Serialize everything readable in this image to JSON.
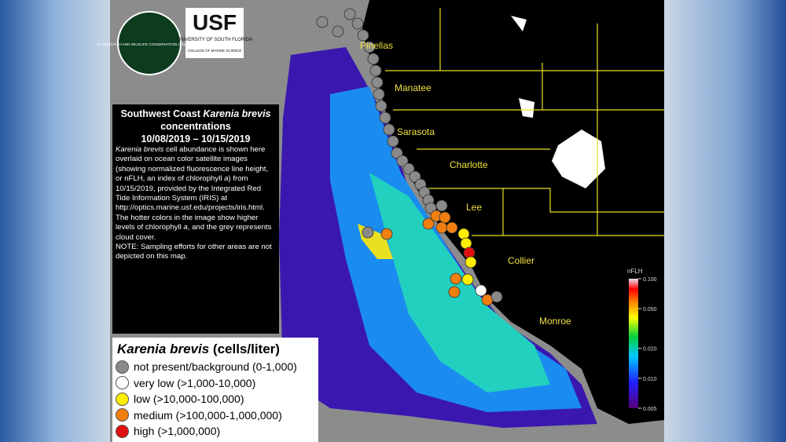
{
  "logos": {
    "fwc": "FLORIDA FISH AND WILDLIFE CONSERVATION COMMISSION",
    "usf": "USF",
    "usf_name": "UNIVERSITY OF SOUTH FLORIDA",
    "usf_college": "COLLEGE OF MARINE SCIENCE"
  },
  "info": {
    "title": [
      {
        "text": "Southwest Coast "
      },
      {
        "text": "Karenia brevis",
        "italic": true
      },
      {
        "text": " concentrations"
      }
    ],
    "date": "10/08/2019 – 10/15/2019",
    "description": [
      {
        "text": "Karenia brevis",
        "italic": true
      },
      {
        "text": " cell abundance is shown here overlaid on ocean color satellite images (showing normalized fluorescence line height, or nFLH, an index of chlorophyll "
      },
      {
        "text": "a",
        "italic": true
      },
      {
        "text": ") from 10/15/2019, provided by the Integrated Red Tide Information System (IRIS) at http://optics.marine.usf.edu/projects/iris.html. The hotter colors in the image show higher levels of chlorophyll "
      },
      {
        "text": "a",
        "italic": true
      },
      {
        "text": ", and the grey represents cloud cover."
      }
    ],
    "note": "NOTE: Sampling efforts for other areas are not depicted on this map."
  },
  "legend": {
    "title": [
      {
        "text": "Karenia brevis",
        "italic": true
      },
      {
        "text": " (cells/liter)"
      }
    ],
    "items": [
      {
        "label": "not present/background (0-1,000)",
        "color": "#8a8a8a"
      },
      {
        "label": "very low (>1,000-10,000)",
        "color": "#ffffff"
      },
      {
        "label": "low (>10,000-100,000)",
        "color": "#ffee00"
      },
      {
        "label": "medium (>100,000-1,000,000)",
        "color": "#f07f10"
      },
      {
        "label": "high (>1,000,000)",
        "color": "#e01010"
      }
    ]
  },
  "counties": [
    "Pinellas",
    "Manatee",
    "Sarasota",
    "Charlotte",
    "Lee",
    "Collier",
    "Monroe"
  ],
  "colorbar": {
    "title": "nFLH",
    "lim": [
      0.005,
      0.1
    ],
    "log": true,
    "ticks": [
      {
        "value": 0.1,
        "label": "0.100"
      },
      {
        "value": 0.05,
        "label": "0.050"
      },
      {
        "value": 0.02,
        "label": "0.020"
      },
      {
        "value": 0.01,
        "label": "0.010"
      },
      {
        "value": 0.005,
        "label": "0.005"
      }
    ]
  }
}
